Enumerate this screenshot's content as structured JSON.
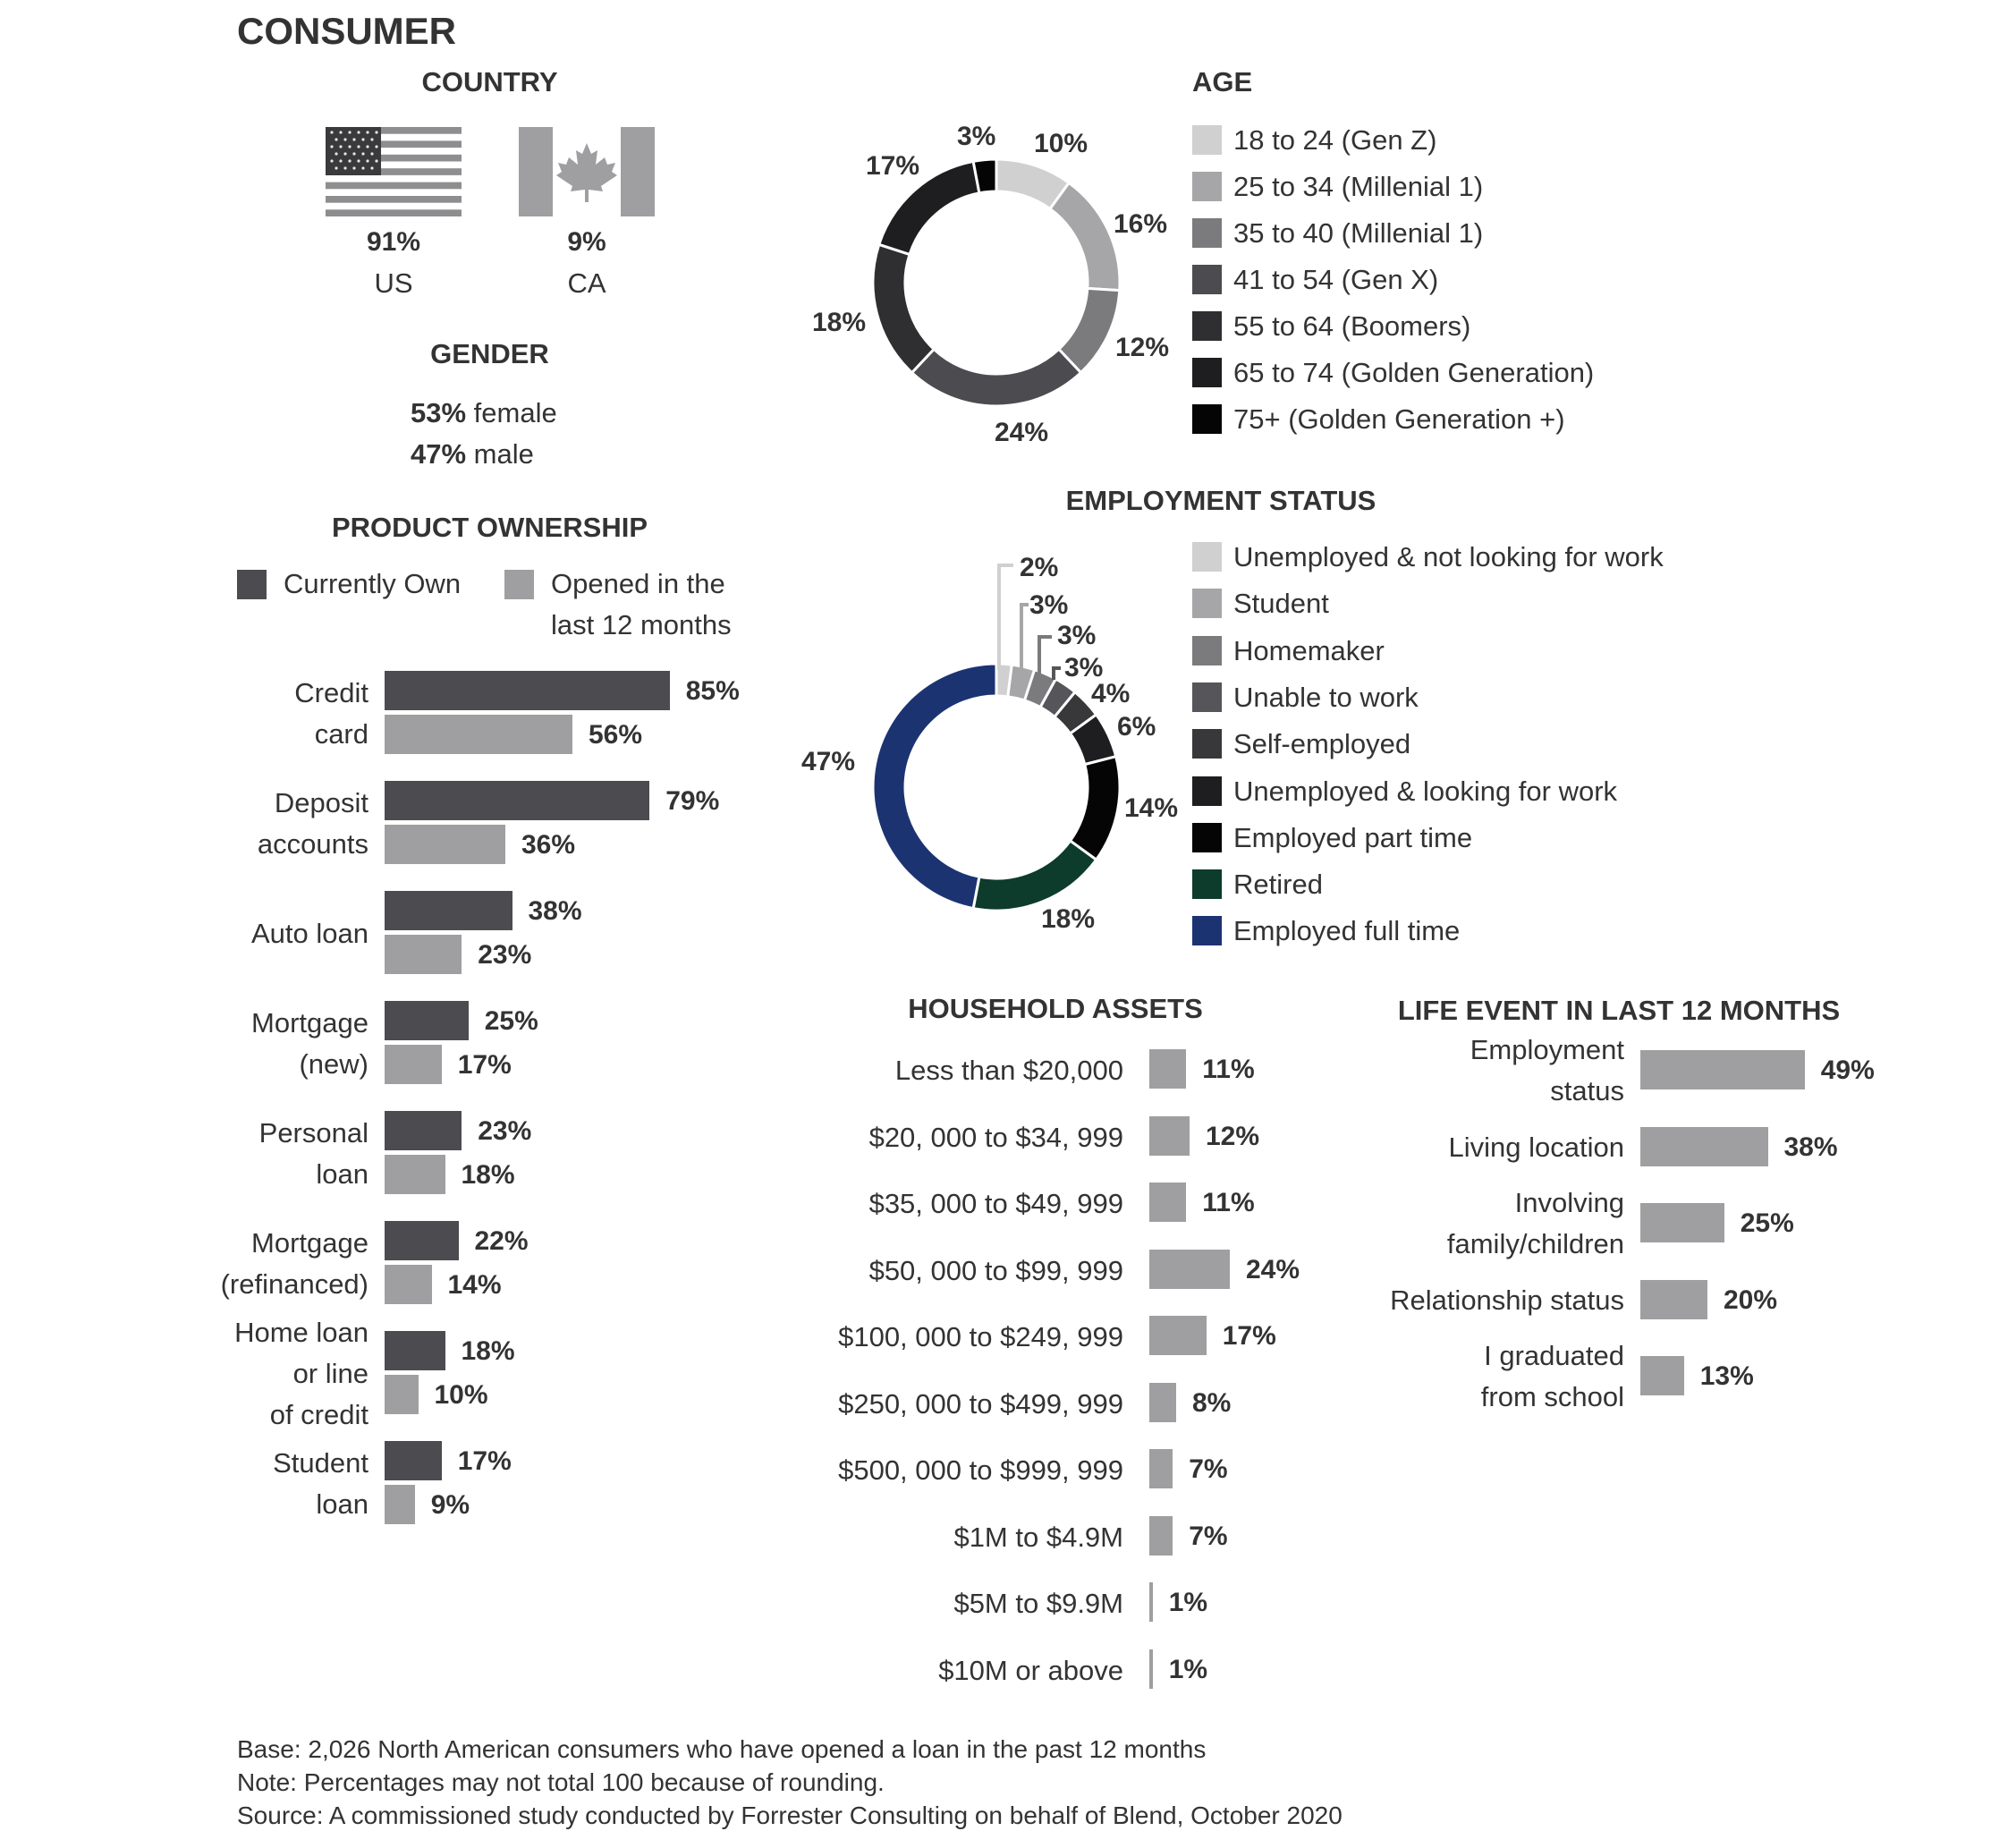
{
  "title": "CONSUMER",
  "colors": {
    "currently_own": "#4b4b50",
    "opened_12m": "#9f9fa1",
    "asset_bar": "#9f9fa1",
    "life_bar": "#9f9fa1",
    "text": "#333333"
  },
  "country": {
    "heading": "COUNTRY",
    "items": [
      {
        "flag": "us-flag-icon",
        "pct": "91%",
        "code": "US"
      },
      {
        "flag": "canada-flag-icon",
        "pct": "9%",
        "code": "CA"
      }
    ]
  },
  "gender": {
    "heading": "GENDER",
    "female_pct": "53%",
    "female_label": "female",
    "male_pct": "47%",
    "male_label": "male"
  },
  "footer": {
    "base": "Base: 2,026 North American consumers who have opened a loan in the past 12 months",
    "note": "Note: Percentages may not total 100 because of rounding.",
    "source": "Source: A commissioned study conducted by Forrester Consulting on behalf of Blend, October 2020"
  },
  "chart_data": [
    {
      "id": "age",
      "type": "pie",
      "title": "AGE",
      "labels": [
        "18 to 24 (Gen Z)",
        "25 to 34 (Millenial 1)",
        "35 to 40 (Millenial 1)",
        "41 to 54 (Gen X)",
        "55 to 64 (Boomers)",
        "65 to 74 (Golden Generation)",
        "75+ (Golden Generation +)"
      ],
      "values": [
        10,
        16,
        12,
        24,
        18,
        17,
        3
      ],
      "value_labels": [
        "10%",
        "16%",
        "12%",
        "24%",
        "18%",
        "17%",
        "3%"
      ],
      "colors": [
        "#d0d0d1",
        "#a6a6a8",
        "#7b7b7e",
        "#4b4b50",
        "#2f2f32",
        "#1e1e20",
        "#050505"
      ],
      "legend": "right"
    },
    {
      "id": "employment",
      "type": "pie",
      "title": "EMPLOYMENT STATUS",
      "labels": [
        "Unemployed & not looking for work",
        "Student",
        "Homemaker",
        "Unable to work",
        "Self-employed",
        "Unemployed & looking for work",
        "Employed part time",
        "Retired",
        "Employed full time"
      ],
      "values": [
        2,
        3,
        3,
        3,
        4,
        6,
        14,
        18,
        47
      ],
      "value_labels": [
        "2%",
        "3%",
        "3%",
        "3%",
        "4%",
        "6%",
        "14%",
        "18%",
        "47%"
      ],
      "colors": [
        "#d0d0d1",
        "#a6a6a8",
        "#7b7b7e",
        "#55555a",
        "#38383b",
        "#1e1e20",
        "#050505",
        "#0d3b2c",
        "#1c3372"
      ],
      "legend": "right"
    },
    {
      "id": "product_ownership",
      "type": "bar",
      "title": "PRODUCT OWNERSHIP",
      "categories": [
        [
          "Credit",
          "card"
        ],
        [
          "Deposit",
          "accounts"
        ],
        [
          "Auto loan"
        ],
        [
          "Mortgage",
          "(new)"
        ],
        [
          "Personal",
          "loan"
        ],
        [
          "Mortgage",
          "(refinanced)"
        ],
        [
          "Home loan",
          "or line",
          "of credit"
        ],
        [
          "Student",
          "loan"
        ]
      ],
      "legend_labels": [
        [
          "Currently Own"
        ],
        [
          "Opened in the",
          "last 12 months"
        ]
      ],
      "series": [
        {
          "name": "Currently Own",
          "values": [
            85,
            79,
            38,
            25,
            23,
            22,
            18,
            17
          ],
          "labels": [
            "85%",
            "79%",
            "38%",
            "25%",
            "23%",
            "22%",
            "18%",
            "17%"
          ]
        },
        {
          "name": "Opened in the last 12 months",
          "values": [
            56,
            36,
            23,
            17,
            18,
            14,
            10,
            9
          ],
          "labels": [
            "56%",
            "36%",
            "23%",
            "17%",
            "18%",
            "14%",
            "10%",
            "9%"
          ]
        }
      ],
      "orientation": "horizontal",
      "legend": "top-left"
    },
    {
      "id": "household_assets",
      "type": "bar",
      "title": "HOUSEHOLD ASSETS",
      "categories": [
        "Less than $20,000",
        "$20, 000 to $34, 999",
        "$35, 000 to $49, 999",
        "$50, 000 to $99, 999",
        "$100, 000 to $249, 999",
        "$250, 000 to $499, 999",
        "$500, 000 to $999, 999",
        "$1M to $4.9M",
        "$5M to $9.9M",
        "$10M or above"
      ],
      "values": [
        11,
        12,
        11,
        24,
        17,
        8,
        7,
        7,
        1,
        1
      ],
      "value_labels": [
        "11%",
        "12%",
        "11%",
        "24%",
        "17%",
        "8%",
        "7%",
        "7%",
        "1%",
        "1%"
      ],
      "orientation": "horizontal"
    },
    {
      "id": "life_event",
      "type": "bar",
      "title": "LIFE EVENT IN LAST 12  MONTHS",
      "categories": [
        [
          "Employment",
          "status"
        ],
        [
          "Living location"
        ],
        [
          "Involving",
          "family/children"
        ],
        [
          "Relationship status"
        ],
        [
          "I graduated",
          "from school"
        ]
      ],
      "values": [
        49,
        38,
        25,
        20,
        13
      ],
      "value_labels": [
        "49%",
        "38%",
        "25%",
        "20%",
        "13%"
      ],
      "orientation": "horizontal"
    }
  ]
}
